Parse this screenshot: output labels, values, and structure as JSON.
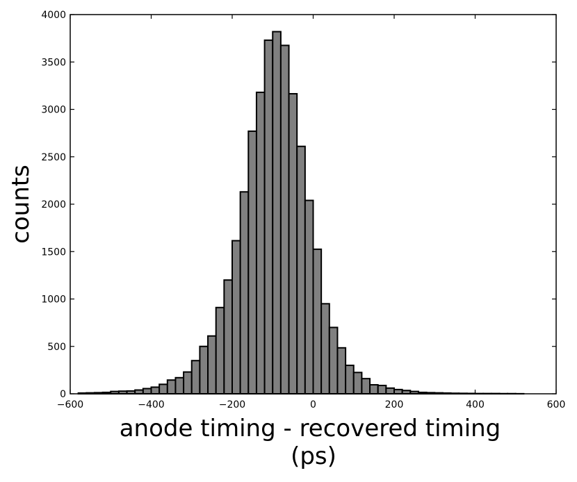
{
  "chart_data": {
    "type": "bar",
    "title": "",
    "xlabel_lines": [
      "anode timing - recovered timing",
      "(ps)"
    ],
    "ylabel": "counts",
    "xlim": [
      -600,
      600
    ],
    "ylim": [
      0,
      4000
    ],
    "x_ticks": [
      -600,
      -400,
      -200,
      0,
      200,
      400,
      600
    ],
    "x_tick_labels": [
      "−600",
      "−400",
      "−200",
      "0",
      "200",
      "400",
      "600"
    ],
    "y_ticks": [
      0,
      500,
      1000,
      1500,
      2000,
      2500,
      3000,
      3500,
      4000
    ],
    "y_tick_labels": [
      "0",
      "500",
      "1000",
      "1500",
      "2000",
      "2500",
      "3000",
      "3500",
      "4000"
    ],
    "grid": false,
    "bar_color": "#808080",
    "edge_color": "#000000",
    "bins": [
      {
        "x0": -580,
        "x1": -560,
        "count": 8
      },
      {
        "x0": -560,
        "x1": -540,
        "count": 10
      },
      {
        "x0": -540,
        "x1": -520,
        "count": 12
      },
      {
        "x0": -520,
        "x1": -500,
        "count": 15
      },
      {
        "x0": -500,
        "x1": -480,
        "count": 25
      },
      {
        "x0": -480,
        "x1": -460,
        "count": 28
      },
      {
        "x0": -460,
        "x1": -440,
        "count": 30
      },
      {
        "x0": -440,
        "x1": -420,
        "count": 40
      },
      {
        "x0": -420,
        "x1": -400,
        "count": 55
      },
      {
        "x0": -400,
        "x1": -380,
        "count": 70
      },
      {
        "x0": -380,
        "x1": -360,
        "count": 100
      },
      {
        "x0": -360,
        "x1": -340,
        "count": 145
      },
      {
        "x0": -340,
        "x1": -320,
        "count": 170
      },
      {
        "x0": -320,
        "x1": -300,
        "count": 230
      },
      {
        "x0": -300,
        "x1": -280,
        "count": 350
      },
      {
        "x0": -280,
        "x1": -260,
        "count": 500
      },
      {
        "x0": -260,
        "x1": -240,
        "count": 610
      },
      {
        "x0": -240,
        "x1": -220,
        "count": 910
      },
      {
        "x0": -220,
        "x1": -200,
        "count": 1200
      },
      {
        "x0": -200,
        "x1": -180,
        "count": 1615
      },
      {
        "x0": -180,
        "x1": -160,
        "count": 2130
      },
      {
        "x0": -160,
        "x1": -140,
        "count": 2770
      },
      {
        "x0": -140,
        "x1": -120,
        "count": 3180
      },
      {
        "x0": -120,
        "x1": -100,
        "count": 3730
      },
      {
        "x0": -100,
        "x1": -80,
        "count": 3820
      },
      {
        "x0": -80,
        "x1": -60,
        "count": 3675
      },
      {
        "x0": -60,
        "x1": -40,
        "count": 3165
      },
      {
        "x0": -40,
        "x1": -20,
        "count": 2610
      },
      {
        "x0": -20,
        "x1": 0,
        "count": 2040
      },
      {
        "x0": 0,
        "x1": 20,
        "count": 1525
      },
      {
        "x0": 20,
        "x1": 40,
        "count": 950
      },
      {
        "x0": 40,
        "x1": 60,
        "count": 700
      },
      {
        "x0": 60,
        "x1": 80,
        "count": 485
      },
      {
        "x0": 80,
        "x1": 100,
        "count": 300
      },
      {
        "x0": 100,
        "x1": 120,
        "count": 225
      },
      {
        "x0": 120,
        "x1": 140,
        "count": 160
      },
      {
        "x0": 140,
        "x1": 160,
        "count": 95
      },
      {
        "x0": 160,
        "x1": 180,
        "count": 88
      },
      {
        "x0": 180,
        "x1": 200,
        "count": 60
      },
      {
        "x0": 200,
        "x1": 220,
        "count": 45
      },
      {
        "x0": 220,
        "x1": 240,
        "count": 35
      },
      {
        "x0": 240,
        "x1": 260,
        "count": 25
      },
      {
        "x0": 260,
        "x1": 280,
        "count": 15
      },
      {
        "x0": 280,
        "x1": 300,
        "count": 12
      },
      {
        "x0": 300,
        "x1": 320,
        "count": 10
      },
      {
        "x0": 320,
        "x1": 340,
        "count": 8
      },
      {
        "x0": 340,
        "x1": 360,
        "count": 6
      },
      {
        "x0": 360,
        "x1": 380,
        "count": 5
      },
      {
        "x0": 380,
        "x1": 400,
        "count": 4
      },
      {
        "x0": 400,
        "x1": 420,
        "count": 3
      },
      {
        "x0": 420,
        "x1": 440,
        "count": 3
      },
      {
        "x0": 440,
        "x1": 460,
        "count": 3
      },
      {
        "x0": 460,
        "x1": 480,
        "count": 2
      },
      {
        "x0": 480,
        "x1": 500,
        "count": 2
      },
      {
        "x0": 500,
        "x1": 520,
        "count": 1
      }
    ]
  }
}
